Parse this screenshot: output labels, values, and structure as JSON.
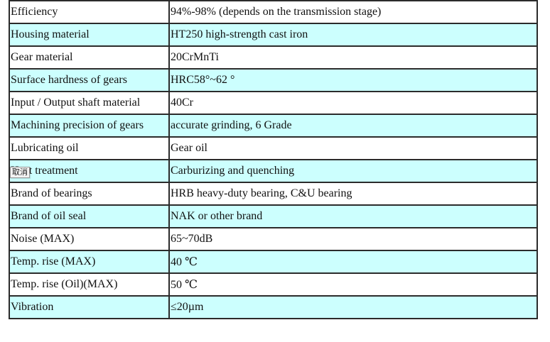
{
  "spec_table": {
    "rows": [
      {
        "label": "Efficiency",
        "value": "94%-98% (depends on the transmission stage)"
      },
      {
        "label": "Housing material",
        "value": "HT250 high-strength cast iron"
      },
      {
        "label": "Gear material",
        "value": "20CrMnTi"
      },
      {
        "label": "Surface hardness of gears",
        "value": "HRC58°~62 °"
      },
      {
        "label": "Input / Output shaft material",
        "value": "40Cr"
      },
      {
        "label": "Machining precision of gears",
        "value": "accurate grinding, 6 Grade"
      },
      {
        "label": "Lubricating oil",
        "value": "Gear oil"
      },
      {
        "label": "Heat treatment",
        "value": "Carburizing and quenching"
      },
      {
        "label": "Brand of bearings",
        "value": "HRB heavy-duty bearing, C&U bearing"
      },
      {
        "label": "Brand of oil seal",
        "value": "NAK or other brand"
      },
      {
        "label": "Noise (MAX)",
        "value": "65~70dB"
      },
      {
        "label": "Temp. rise (MAX)",
        "value": "40 ℃"
      },
      {
        "label": "Temp. rise (Oil)(MAX)",
        "value": "50 ℃"
      },
      {
        "label": "Vibration",
        "value": "≤20µm"
      }
    ]
  },
  "tooltip": {
    "text": "取消"
  },
  "colors": {
    "alt_row_background": "#ccfffe",
    "plain_row_background": "#ffffff",
    "border": "#2b2b2b"
  }
}
